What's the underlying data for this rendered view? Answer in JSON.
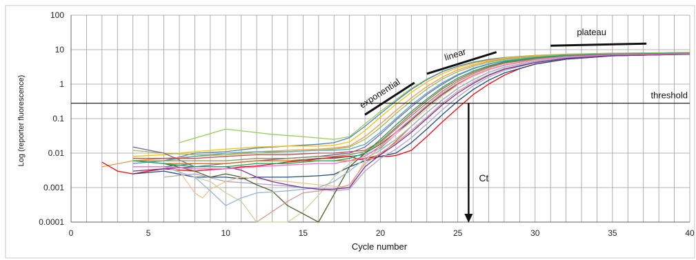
{
  "chart_data": {
    "type": "line",
    "title": "",
    "xlabel": "Cycle number",
    "ylabel": "Log (reporter fluorescence)",
    "xlim": [
      0,
      40
    ],
    "ylim": [
      0.0001,
      100
    ],
    "y_scale": "log",
    "grid": "vertical lines every cycle",
    "x_ticks": [
      0,
      5,
      10,
      15,
      20,
      25,
      30,
      35,
      40
    ],
    "x_tick_labels": [
      "0",
      "5",
      "10",
      "15",
      "20",
      "25",
      "30",
      "35",
      "40"
    ],
    "y_ticks": [
      0.0001,
      0.001,
      0.01,
      0.1,
      1,
      10,
      100
    ],
    "y_tick_labels": [
      "0.0001",
      "0.001",
      "0.01",
      "0.1",
      "1",
      "10",
      "100"
    ],
    "threshold": 0.28,
    "ct": 25.7,
    "annotations": {
      "threshold": "threshold",
      "exponential": "exponential",
      "linear": "linear",
      "plateau": "plateau",
      "ct": "Ct"
    },
    "phase_segments": [
      {
        "label": "exponential",
        "x": [
          19.0,
          22.2
        ],
        "y": [
          0.13,
          1.1
        ]
      },
      {
        "label": "linear",
        "x": [
          23.0,
          27.5
        ],
        "y": [
          2.0,
          8.5
        ]
      },
      {
        "label": "plateau",
        "x": [
          31.0,
          37.2
        ],
        "y": [
          13,
          15
        ]
      }
    ],
    "series": [
      {
        "color": "#92d050",
        "x": [
          7,
          10,
          13,
          15,
          17,
          18,
          19,
          20,
          21,
          22,
          23,
          24,
          25,
          26,
          27,
          28,
          30,
          32,
          35,
          40
        ],
        "values": [
          0.02,
          0.05,
          0.035,
          0.03,
          0.025,
          0.03,
          0.07,
          0.16,
          0.35,
          0.75,
          1.4,
          2.3,
          3.3,
          4.3,
          5.2,
          5.9,
          6.8,
          7.3,
          7.8,
          8.3
        ]
      },
      {
        "color": "#4f81bd",
        "x": [
          4,
          6,
          8,
          10,
          12,
          14,
          16,
          17,
          18,
          19,
          20,
          21,
          22,
          23,
          24,
          25,
          26,
          27,
          28,
          30,
          32,
          35,
          40
        ],
        "values": [
          0.005,
          0.006,
          0.01,
          0.011,
          0.014,
          0.016,
          0.018,
          0.02,
          0.028,
          0.06,
          0.14,
          0.32,
          0.7,
          1.35,
          2.3,
          3.3,
          4.3,
          5.2,
          5.9,
          6.8,
          7.4,
          7.9,
          8.3
        ]
      },
      {
        "color": "#ffc000",
        "x": [
          4,
          6,
          8,
          10,
          12,
          14,
          16,
          17,
          18,
          19,
          20,
          21,
          22,
          23,
          24,
          25,
          26,
          27,
          28,
          30,
          32,
          35,
          40
        ],
        "values": [
          0.008,
          0.009,
          0.011,
          0.013,
          0.015,
          0.016,
          0.016,
          0.017,
          0.021,
          0.045,
          0.11,
          0.26,
          0.58,
          1.15,
          2.0,
          3.0,
          4.0,
          4.9,
          5.7,
          6.7,
          7.3,
          7.8,
          8.2
        ]
      },
      {
        "color": "#f79646",
        "x": [
          2,
          4,
          6,
          8,
          10,
          12,
          14,
          16,
          17,
          18,
          19,
          20,
          21,
          22,
          23,
          24,
          25,
          26,
          27,
          28,
          30,
          32,
          35,
          40
        ],
        "values": [
          0.004,
          0.006,
          0.007,
          0.008,
          0.009,
          0.011,
          0.012,
          0.013,
          0.014,
          0.016,
          0.03,
          0.07,
          0.17,
          0.4,
          0.85,
          1.6,
          2.6,
          3.6,
          4.6,
          5.4,
          6.5,
          7.2,
          7.7,
          8.1
        ]
      },
      {
        "color": "#9bbb59",
        "x": [
          4,
          6,
          8,
          10,
          12,
          14,
          16,
          17,
          18,
          19,
          20,
          21,
          22,
          23,
          24,
          25,
          26,
          27,
          28,
          30,
          32,
          35,
          40
        ],
        "values": [
          0.012,
          0.01,
          0.009,
          0.009,
          0.01,
          0.011,
          0.012,
          0.013,
          0.015,
          0.025,
          0.055,
          0.14,
          0.33,
          0.72,
          1.4,
          2.3,
          3.3,
          4.3,
          5.2,
          6.3,
          7.0,
          7.6,
          8.0
        ]
      },
      {
        "color": "#8064a2",
        "x": [
          4,
          6,
          8,
          10,
          12,
          14,
          16,
          17,
          18,
          19,
          20,
          21,
          22,
          23,
          24,
          25,
          26,
          27,
          28,
          30,
          32,
          35,
          40
        ],
        "values": [
          0.015,
          0.01,
          0.004,
          0.005,
          0.006,
          0.007,
          0.008,
          0.009,
          0.01,
          0.015,
          0.035,
          0.09,
          0.22,
          0.5,
          1.0,
          1.8,
          2.8,
          3.8,
          4.7,
          5.9,
          6.8,
          7.4,
          7.9
        ]
      },
      {
        "color": "#4bacc6",
        "x": [
          4,
          6,
          8,
          10,
          12,
          14,
          16,
          17,
          18,
          19,
          20,
          21,
          22,
          23,
          24,
          25,
          26,
          27,
          28,
          30,
          32,
          35,
          40
        ],
        "values": [
          0.005,
          0.006,
          0.008,
          0.01,
          0.011,
          0.011,
          0.012,
          0.012,
          0.013,
          0.018,
          0.04,
          0.1,
          0.25,
          0.55,
          1.1,
          1.9,
          2.9,
          3.9,
          4.8,
          6.0,
          6.9,
          7.5,
          7.9
        ]
      },
      {
        "color": "#c0504d",
        "x": [
          4,
          6,
          8,
          10,
          12,
          14,
          16,
          17,
          18,
          19,
          20,
          21,
          22,
          23,
          24,
          25,
          26,
          27,
          28,
          30,
          32,
          35,
          40
        ],
        "values": [
          0.007,
          0.007,
          0.007,
          0.008,
          0.009,
          0.009,
          0.01,
          0.01,
          0.011,
          0.012,
          0.022,
          0.055,
          0.14,
          0.33,
          0.72,
          1.35,
          2.2,
          3.2,
          4.2,
          5.6,
          6.6,
          7.3,
          7.8
        ]
      },
      {
        "color": "#948a54",
        "x": [
          4,
          6,
          8,
          10,
          12,
          14,
          16,
          17,
          18,
          19,
          20,
          21,
          22,
          23,
          24,
          25,
          26,
          27,
          28,
          30,
          32,
          35,
          40
        ],
        "values": [
          0.006,
          0.006,
          0.006,
          0.006,
          0.007,
          0.007,
          0.008,
          0.008,
          0.009,
          0.011,
          0.02,
          0.05,
          0.12,
          0.28,
          0.62,
          1.2,
          2.0,
          3.0,
          4.0,
          5.4,
          6.5,
          7.2,
          7.7
        ]
      },
      {
        "color": "#31859c",
        "x": [
          4,
          6,
          8,
          10,
          12,
          14,
          16,
          17,
          18,
          19,
          20,
          21,
          22,
          23,
          24,
          25,
          26,
          27,
          28,
          30,
          32,
          35,
          40
        ],
        "values": [
          0.004,
          0.004,
          0.005,
          0.005,
          0.006,
          0.006,
          0.007,
          0.007,
          0.008,
          0.009,
          0.014,
          0.035,
          0.09,
          0.22,
          0.5,
          1.0,
          1.7,
          2.6,
          3.5,
          5.0,
          6.2,
          7.0,
          7.6
        ]
      },
      {
        "color": "#e46c0a",
        "x": [
          4,
          6,
          8,
          10,
          12,
          14,
          16,
          17,
          18,
          19,
          20,
          21,
          22,
          23,
          24,
          25,
          26,
          27,
          28,
          30,
          32,
          35,
          40
        ],
        "values": [
          0.006,
          0.005,
          0.005,
          0.005,
          0.006,
          0.006,
          0.006,
          0.006,
          0.006,
          0.007,
          0.009,
          0.022,
          0.06,
          0.15,
          0.35,
          0.75,
          1.35,
          2.2,
          3.1,
          4.6,
          5.9,
          6.9,
          7.5
        ]
      },
      {
        "color": "#ff0000",
        "x": [
          2,
          3,
          4,
          5,
          6,
          7,
          8,
          9,
          10,
          11,
          12,
          13,
          14,
          15,
          16,
          17,
          18,
          18.7,
          19.5,
          20,
          20.5,
          21,
          22,
          23,
          24,
          25,
          26,
          27,
          28,
          29,
          30,
          32,
          35,
          40
        ],
        "values": [
          0.0055,
          0.003,
          0.0025,
          0.003,
          0.0035,
          0.0032,
          0.003,
          0.0033,
          0.0035,
          0.004,
          0.0042,
          0.0048,
          0.0055,
          0.006,
          0.0068,
          0.0075,
          0.008,
          0.0065,
          0.0075,
          0.008,
          0.008,
          0.0085,
          0.012,
          0.03,
          0.08,
          0.2,
          0.5,
          1.0,
          1.8,
          2.8,
          3.8,
          5.3,
          6.6,
          7.4
        ]
      },
      {
        "color": "#1f497d",
        "x": [
          4,
          6,
          8,
          10,
          11,
          12,
          14,
          16,
          17,
          18,
          19,
          20,
          21,
          22,
          23,
          24,
          25,
          26,
          27,
          28,
          30,
          32,
          35,
          40
        ],
        "values": [
          0.0025,
          0.003,
          0.002,
          0.002,
          0.0018,
          0.002,
          0.002,
          0.0022,
          0.0024,
          0.004,
          0.006,
          0.008,
          0.01,
          0.02,
          0.05,
          0.13,
          0.32,
          0.7,
          1.3,
          2.1,
          3.8,
          5.3,
          6.6,
          7.4
        ]
      },
      {
        "color": "#c3d69b",
        "x": [
          8,
          9,
          10,
          11,
          12,
          13,
          14,
          15,
          16,
          17,
          18,
          19,
          20,
          21,
          22,
          23,
          24,
          25,
          26,
          27,
          28,
          30,
          32,
          35,
          40
        ],
        "values": [
          0.002,
          0.0015,
          0.0007,
          0.0004,
          8e-05,
          6e-05,
          8e-05,
          0.0002,
          0.0006,
          0.002,
          0.005,
          0.009,
          0.013,
          0.025,
          0.06,
          0.15,
          0.35,
          0.75,
          1.35,
          2.2,
          3.1,
          4.7,
          6.0,
          6.9,
          7.5
        ]
      },
      {
        "color": "#b3a2c7",
        "x": [
          6,
          8,
          10,
          12,
          14,
          15,
          16,
          17,
          18,
          19,
          20,
          21,
          22,
          23,
          24,
          25,
          26,
          27,
          28,
          30,
          32,
          35,
          40
        ],
        "values": [
          0.002,
          0.0025,
          0.0015,
          0.0013,
          0.0011,
          0.001,
          0.0009,
          0.0008,
          0.0009,
          0.003,
          0.007,
          0.013,
          0.028,
          0.07,
          0.18,
          0.42,
          0.9,
          1.6,
          2.5,
          4.2,
          5.6,
          6.7,
          7.4
        ]
      },
      {
        "color": "#4f6228",
        "x": [
          6,
          8,
          9,
          10,
          11,
          12,
          13,
          14,
          16,
          18,
          19,
          20,
          21,
          22,
          23,
          24,
          25,
          26,
          27,
          28,
          30,
          32,
          35,
          40
        ],
        "values": [
          0.005,
          0.003,
          0.002,
          0.0025,
          0.002,
          0.0012,
          0.0008,
          0.0003,
          0.0001,
          0.004,
          0.01,
          0.018,
          0.04,
          0.09,
          0.22,
          0.5,
          1.0,
          1.7,
          2.6,
          3.5,
          5.0,
          6.2,
          7.0,
          7.6
        ]
      },
      {
        "color": "#fac090",
        "x": [
          6,
          7,
          8,
          8.5,
          9,
          10,
          11,
          12,
          14,
          16,
          18,
          19,
          20,
          21,
          22,
          23,
          24,
          25,
          26,
          27,
          28,
          30,
          32,
          35,
          40
        ],
        "values": [
          0.004,
          0.003,
          0.0007,
          0.0005,
          0.0009,
          0.0015,
          0.002,
          0.0018,
          0.0015,
          0.0012,
          0.001,
          0.006,
          0.015,
          0.035,
          0.08,
          0.19,
          0.45,
          0.95,
          1.7,
          2.6,
          3.5,
          5.0,
          6.2,
          7.0,
          7.6
        ]
      },
      {
        "color": "#95b3d7",
        "x": [
          6,
          8,
          9,
          10,
          11,
          12,
          14,
          16,
          17,
          18,
          19,
          20,
          21,
          22,
          23,
          24,
          25,
          26,
          27,
          28,
          30,
          32,
          35,
          40
        ],
        "values": [
          0.004,
          0.002,
          0.0008,
          0.0003,
          0.0005,
          0.0007,
          0.0008,
          0.001,
          0.0015,
          0.003,
          0.007,
          0.012,
          0.025,
          0.06,
          0.15,
          0.35,
          0.75,
          1.35,
          2.2,
          3.1,
          4.6,
          5.9,
          6.9,
          7.5
        ]
      },
      {
        "color": "#d99694",
        "x": [
          12,
          13,
          14,
          15,
          16,
          17,
          18,
          19,
          20,
          21,
          22,
          23,
          24,
          25,
          26,
          27,
          28,
          30,
          32,
          35,
          40
        ],
        "values": [
          0.0001,
          0.0002,
          0.0004,
          0.0007,
          0.0008,
          0.0009,
          0.0012,
          0.005,
          0.01,
          0.02,
          0.045,
          0.11,
          0.28,
          0.62,
          1.15,
          1.9,
          2.8,
          4.3,
          5.7,
          6.8,
          7.4
        ]
      },
      {
        "color": "#7030a0",
        "x": [
          4,
          6,
          8,
          10,
          11,
          12,
          13,
          14,
          15,
          16,
          17,
          18,
          19,
          20,
          21,
          22,
          23,
          24,
          25,
          26,
          27,
          28,
          30,
          32,
          35,
          40
        ],
        "values": [
          0.003,
          0.0035,
          0.004,
          0.004,
          0.0032,
          0.002,
          0.0015,
          0.0012,
          0.001,
          0.0009,
          0.0009,
          0.001,
          0.004,
          0.009,
          0.018,
          0.04,
          0.1,
          0.25,
          0.55,
          1.05,
          1.8,
          2.7,
          4.2,
          5.6,
          6.7,
          7.3
        ]
      },
      {
        "color": "#00b050",
        "x": [
          4,
          6,
          8,
          10,
          12,
          14,
          16,
          17,
          18,
          19,
          20,
          21,
          22,
          23,
          24,
          25,
          26,
          27,
          28,
          30,
          32,
          35,
          40
        ],
        "values": [
          0.006,
          0.005,
          0.004,
          0.004,
          0.005,
          0.005,
          0.006,
          0.006,
          0.007,
          0.01,
          0.025,
          0.065,
          0.16,
          0.37,
          0.8,
          1.5,
          2.4,
          3.4,
          4.4,
          5.8,
          6.8,
          7.4,
          7.9
        ]
      },
      {
        "color": "#ff66cc",
        "x": [
          4,
          6,
          8,
          10,
          12,
          14,
          16,
          17,
          18,
          19,
          20,
          21,
          22,
          23,
          24,
          25,
          26,
          27,
          28,
          30,
          32,
          35,
          40
        ],
        "values": [
          0.004,
          0.004,
          0.0035,
          0.0035,
          0.004,
          0.0045,
          0.005,
          0.005,
          0.006,
          0.008,
          0.016,
          0.04,
          0.1,
          0.24,
          0.55,
          1.05,
          1.8,
          2.7,
          3.6,
          5.2,
          6.3,
          7.1,
          7.6
        ]
      }
    ]
  }
}
